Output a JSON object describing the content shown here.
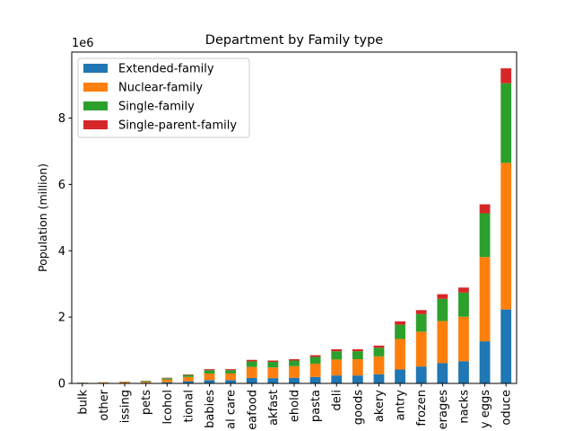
{
  "chart_data": {
    "type": "bar",
    "stacked": true,
    "title": "Department by Family type",
    "xlabel": "",
    "ylabel": "Population (million)",
    "y_offset_label": "1e6",
    "ylim": [
      0,
      9990000
    ],
    "yticks": [
      0,
      2,
      4,
      6,
      8
    ],
    "grid": false,
    "legend_position": "upper left",
    "categories": [
      "bulk",
      "other",
      "missing",
      "pets",
      "alcohol",
      "international",
      "babies",
      "personal care",
      "seafood",
      "breakfast",
      "household",
      "pasta",
      "deli",
      "dry goods",
      "bakery",
      "pantry",
      "frozen",
      "beverages",
      "snacks",
      "dairy eggs",
      "produce"
    ],
    "category_labels": [
      "bulk",
      "other",
      "issing",
      "pets",
      "lcohol",
      "tional",
      "babies",
      "al care",
      "eafood",
      "akfast",
      "ehold",
      "pasta",
      "deli",
      "goods",
      "akery",
      "antry",
      "frozen",
      "erages",
      "nacks",
      "y eggs",
      "oduce"
    ],
    "series": [
      {
        "name": "Extended-family",
        "color": "#1f77b4",
        "values": [
          4000,
          8000,
          15000,
          20000,
          35000,
          65000,
          100000,
          100000,
          165000,
          160000,
          170000,
          195000,
          240000,
          240000,
          275000,
          420000,
          510000,
          610000,
          670000,
          1270000,
          2230000
        ]
      },
      {
        "name": "Nuclear-family",
        "color": "#ff7f0e",
        "values": [
          10000,
          17000,
          25000,
          30000,
          80000,
          130000,
          200000,
          200000,
          330000,
          320000,
          350000,
          400000,
          480000,
          490000,
          540000,
          920000,
          1050000,
          1270000,
          1340000,
          2540000,
          4420000
        ]
      },
      {
        "name": "Single-family",
        "color": "#2ca02c",
        "values": [
          6000,
          7000,
          10000,
          25000,
          40000,
          60000,
          100000,
          100000,
          170000,
          170000,
          170000,
          205000,
          250000,
          240000,
          260000,
          430000,
          530000,
          670000,
          730000,
          1320000,
          2400000
        ]
      },
      {
        "name": "Single-parent-family",
        "color": "#d62728",
        "values": [
          3000,
          3000,
          3000,
          5000,
          15000,
          15000,
          30000,
          30000,
          45000,
          40000,
          40000,
          50000,
          60000,
          60000,
          65000,
          100000,
          120000,
          140000,
          150000,
          270000,
          450000
        ]
      }
    ]
  }
}
